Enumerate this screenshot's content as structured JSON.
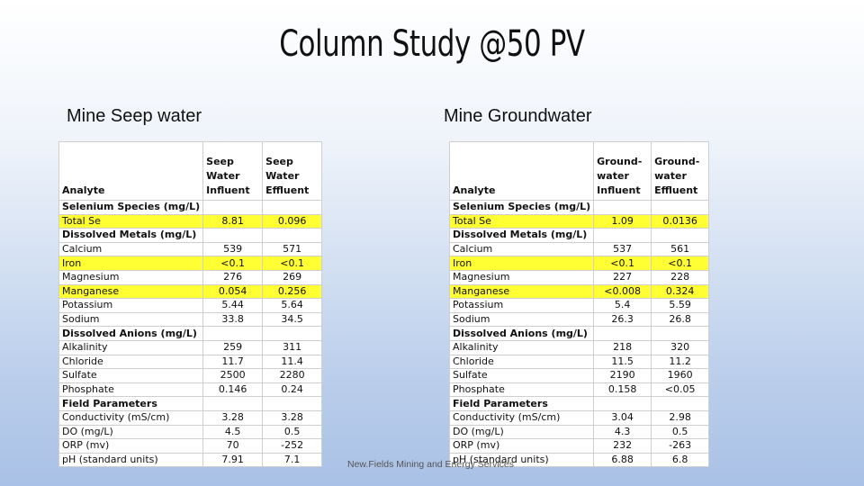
{
  "slide": {
    "title": "Column Study @50 PV",
    "left_subhead": "Mine Seep water",
    "right_subhead": "Mine Groundwater",
    "footer": "New.Fields Mining and Energy Services"
  },
  "colors": {
    "highlight": "#ffff33"
  },
  "left_table": {
    "header": {
      "analyte": "Analyte",
      "influent": "Seep Water Influent",
      "effluent": "Seep Water Effluent"
    },
    "rows": [
      {
        "label": "Selenium Species (mg/L)",
        "inf": "",
        "eff": "",
        "section": true
      },
      {
        "label": "Total Se",
        "inf": "8.81",
        "eff": "0.096",
        "highlight": true
      },
      {
        "label": "Dissolved Metals (mg/L)",
        "inf": "",
        "eff": "",
        "section": true
      },
      {
        "label": "Calcium",
        "inf": "539",
        "eff": "571"
      },
      {
        "label": "Iron",
        "inf": "<0.1",
        "eff": "<0.1",
        "highlight": true
      },
      {
        "label": "Magnesium",
        "inf": "276",
        "eff": "269"
      },
      {
        "label": "Manganese",
        "inf": "0.054",
        "eff": "0.256",
        "highlight": true
      },
      {
        "label": "Potassium",
        "inf": "5.44",
        "eff": "5.64"
      },
      {
        "label": "Sodium",
        "inf": "33.8",
        "eff": "34.5"
      },
      {
        "label": "Dissolved Anions (mg/L)",
        "inf": "",
        "eff": "",
        "section": true
      },
      {
        "label": "Alkalinity",
        "inf": "259",
        "eff": "311"
      },
      {
        "label": "Chloride",
        "inf": "11.7",
        "eff": "11.4"
      },
      {
        "label": "Sulfate",
        "inf": "2500",
        "eff": "2280"
      },
      {
        "label": "Phosphate",
        "inf": "0.146",
        "eff": "0.24"
      },
      {
        "label": "Field Parameters",
        "inf": "",
        "eff": "",
        "section": true
      },
      {
        "label": "Conductivity (mS/cm)",
        "inf": "3.28",
        "eff": "3.28"
      },
      {
        "label": "DO (mg/L)",
        "inf": "4.5",
        "eff": "0.5"
      },
      {
        "label": "ORP (mv)",
        "inf": "70",
        "eff": "-252"
      },
      {
        "label": "pH (standard units)",
        "inf": "7.91",
        "eff": "7.1"
      }
    ]
  },
  "right_table": {
    "header": {
      "analyte": "Analyte",
      "influent": "Ground-water Influent",
      "effluent": "Ground-water Effluent"
    },
    "rows": [
      {
        "label": "Selenium Species (mg/L)",
        "inf": "",
        "eff": "",
        "section": true
      },
      {
        "label": "Total Se",
        "inf": "1.09",
        "eff": "0.0136",
        "highlight": true
      },
      {
        "label": "Dissolved Metals (mg/L)",
        "inf": "",
        "eff": "",
        "section": true
      },
      {
        "label": "Calcium",
        "inf": "537",
        "eff": "561"
      },
      {
        "label": "Iron",
        "inf": "<0.1",
        "eff": "<0.1",
        "highlight": true
      },
      {
        "label": "Magnesium",
        "inf": "227",
        "eff": "228"
      },
      {
        "label": "Manganese",
        "inf": "<0.008",
        "eff": "0.324",
        "highlight": true
      },
      {
        "label": "Potassium",
        "inf": "5.4",
        "eff": "5.59"
      },
      {
        "label": "Sodium",
        "inf": "26.3",
        "eff": "26.8"
      },
      {
        "label": "Dissolved Anions (mg/L)",
        "inf": "",
        "eff": "",
        "section": true
      },
      {
        "label": "Alkalinity",
        "inf": "218",
        "eff": "320"
      },
      {
        "label": "Chloride",
        "inf": "11.5",
        "eff": "11.2"
      },
      {
        "label": "Sulfate",
        "inf": "2190",
        "eff": "1960"
      },
      {
        "label": "Phosphate",
        "inf": "0.158",
        "eff": "<0.05"
      },
      {
        "label": "Field Parameters",
        "inf": "",
        "eff": "",
        "section": true
      },
      {
        "label": "Conductivity (mS/cm)",
        "inf": "3.04",
        "eff": "2.98"
      },
      {
        "label": "DO (mg/L)",
        "inf": "4.3",
        "eff": "0.5"
      },
      {
        "label": "ORP (mv)",
        "inf": "232",
        "eff": "-263"
      },
      {
        "label": "pH (standard units)",
        "inf": "6.88",
        "eff": "6.8"
      }
    ]
  }
}
